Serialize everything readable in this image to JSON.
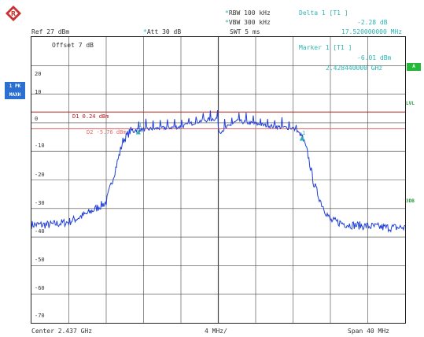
{
  "header": {
    "rbw": "RBW 100 kHz",
    "vbw": "VBW 300 kHz",
    "swt": "SWT 5 ms",
    "ref": "Ref  27 dBm",
    "att": "Att  30 dB",
    "delta_title": "Delta 1 [T1 ]",
    "delta_value": "-2.28 dB",
    "delta_freq": "17.520000000 MHz",
    "marker_title": "Marker 1 [T1 ]",
    "marker_value": "-6.01 dBm",
    "marker_freq": "2.428440000 GHz",
    "offset": "Offset  7 dB"
  },
  "side_left": {
    "label_a": "1 PK",
    "label_b": "MAXH"
  },
  "side_right": {
    "a_button": "A",
    "lvl": "LVL",
    "db3": "3DB"
  },
  "display_lines": {
    "d1": "D1 0.24 dBm",
    "d2": "D2 -5.76 dBm"
  },
  "marker_labels": {
    "m1": "1",
    "m2": "1"
  },
  "y_ticks": [
    "20",
    "10",
    "0",
    "-10",
    "-20",
    "-30",
    "-40",
    "-50",
    "-60",
    "-70"
  ],
  "footer": {
    "center": "Center 2.437 GHz",
    "span_div": "4 MHz/",
    "span": "Span 40 MHz"
  },
  "colors": {
    "trace": "#1f3fd6",
    "d1_line": "#b51d1d",
    "d2_line": "#e06a6a",
    "grid": "#444444",
    "accent": "#2bb3b3"
  },
  "chart_data": {
    "type": "line",
    "title": "",
    "xlabel": "",
    "ylabel": "",
    "xlim": [
      2417,
      2457
    ],
    "ylim": [
      -75,
      27
    ],
    "grid": true,
    "series": [
      {
        "x": [
          2417,
          2419,
          2421,
          2423,
          2425,
          2426,
          2426.8,
          2427.6,
          2428.44,
          2429,
          2431,
          2433,
          2435,
          2436.9,
          2437.1,
          2439,
          2441,
          2443,
          2445,
          2445.96,
          2446.6,
          2447.2,
          2448,
          2449,
          2451,
          2453,
          2455,
          2457
        ],
        "values": [
          -40,
          -40,
          -39,
          -36,
          -32,
          -20,
          -10,
          -6.5,
          -6,
          -6,
          -5.5,
          -5,
          -3,
          -2,
          -7,
          -3,
          -4,
          -5,
          -5.5,
          -8.3,
          -15,
          -25,
          -32,
          -38.5,
          -40,
          -40.5,
          -41,
          -41
        ]
      }
    ],
    "markers": [
      {
        "x": 2428.44,
        "y": -6.01
      },
      {
        "x": 2445.96,
        "y": -8.29
      }
    ],
    "reference_lines": [
      {
        "y": 0.24
      },
      {
        "y": -5.76
      }
    ]
  }
}
